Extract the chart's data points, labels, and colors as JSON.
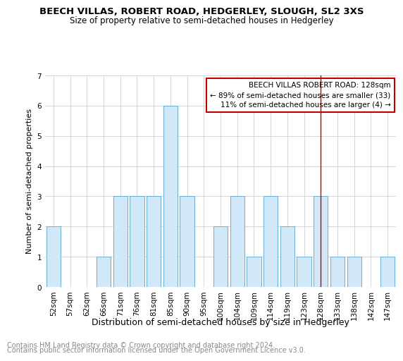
{
  "title1": "BEECH VILLAS, ROBERT ROAD, HEDGERLEY, SLOUGH, SL2 3XS",
  "title2": "Size of property relative to semi-detached houses in Hedgerley",
  "xlabel": "Distribution of semi-detached houses by size in Hedgerley",
  "ylabel": "Number of semi-detached properties",
  "categories": [
    "52sqm",
    "57sqm",
    "62sqm",
    "66sqm",
    "71sqm",
    "76sqm",
    "81sqm",
    "85sqm",
    "90sqm",
    "95sqm",
    "100sqm",
    "104sqm",
    "109sqm",
    "114sqm",
    "119sqm",
    "123sqm",
    "128sqm",
    "133sqm",
    "138sqm",
    "142sqm",
    "147sqm"
  ],
  "values": [
    2,
    0,
    0,
    1,
    3,
    3,
    3,
    6,
    3,
    0,
    2,
    3,
    1,
    3,
    2,
    1,
    3,
    1,
    1,
    0,
    1
  ],
  "bar_color": "#d0e8f8",
  "bar_edge_color": "#6aaed6",
  "marker_idx": 16,
  "marker_line_color": "#c00000",
  "annotation_title": "BEECH VILLAS ROBERT ROAD: 128sqm",
  "annotation_line1": "← 89% of semi-detached houses are smaller (33)",
  "annotation_line2": "11% of semi-detached houses are larger (4) →",
  "annotation_box_color": "#c00000",
  "ylim": [
    0,
    7
  ],
  "yticks": [
    0,
    1,
    2,
    3,
    4,
    5,
    6,
    7
  ],
  "footer1": "Contains HM Land Registry data © Crown copyright and database right 2024.",
  "footer2": "Contains public sector information licensed under the Open Government Licence v3.0.",
  "bg_color": "#ffffff",
  "grid_color": "#d0d0d0",
  "title_fontsize": 9.5,
  "subtitle_fontsize": 8.5,
  "ylabel_fontsize": 8,
  "xlabel_fontsize": 9,
  "tick_fontsize": 7.5,
  "annot_fontsize": 7.5,
  "footer_fontsize": 7
}
